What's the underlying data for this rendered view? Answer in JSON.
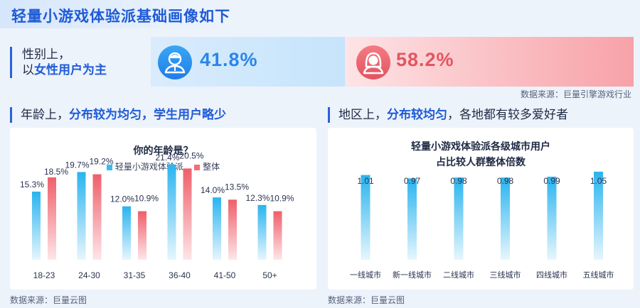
{
  "page_title": "轻量小游戏体验派基础画像如下",
  "gender": {
    "label_line1": "性别上，",
    "label_line2_plain": "以",
    "label_line2_highlight": "女性用户为主",
    "male_percent": "41.8%",
    "female_percent": "58.2%",
    "male_icon": "male-user-icon",
    "female_icon": "female-user-icon",
    "source": "数据来源：巨量引擎游戏行业"
  },
  "age_section": {
    "heading_plain": "年龄上，",
    "heading_highlight": "分布较为均匀，学生用户略少",
    "source": "数据来源：巨量云图"
  },
  "region_section": {
    "heading_plain": "地区上，",
    "heading_highlight": "分布较均匀",
    "heading_tail": "，各地都有较多爱好者",
    "source": "数据来源：巨量云图"
  },
  "colors": {
    "accent": "#1f5bd6",
    "series_blue": "#38bdf0",
    "series_red": "#f26d77"
  },
  "chart_data": [
    {
      "type": "bar",
      "title": "你的年龄是？",
      "categories": [
        "18-23",
        "24-30",
        "31-35",
        "36-40",
        "41-50",
        "50+"
      ],
      "series": [
        {
          "name": "轻量小游戏体验派",
          "values": [
            15.3,
            19.7,
            12.0,
            21.4,
            14.0,
            12.3
          ],
          "labels": [
            "15.3%",
            "19.7%",
            "12.0%",
            "21.4%",
            "14.0%",
            "12.3%"
          ]
        },
        {
          "name": "整体",
          "values": [
            18.5,
            19.2,
            10.9,
            20.5,
            13.5,
            10.9
          ],
          "labels": [
            "18.5%",
            "19.2%",
            "10.9%",
            "20.5%",
            "13.5%",
            "10.9%"
          ]
        }
      ],
      "ylim": [
        0,
        22
      ],
      "legend": "top-center",
      "grid": false
    },
    {
      "type": "bar",
      "title_line1": "轻量小游戏体验派各级城市用户",
      "title_line2": "占比较人群整体倍数",
      "categories": [
        "一线城市",
        "新一线城市",
        "二线城市",
        "三线城市",
        "四线城市",
        "五线城市"
      ],
      "values": [
        1.01,
        0.97,
        0.98,
        0.98,
        0.99,
        1.05
      ],
      "labels": [
        "1.01",
        "0.97",
        "0.98",
        "0.98",
        "0.99",
        "1.05"
      ],
      "ylim": [
        0,
        1.1
      ],
      "grid": false
    }
  ]
}
